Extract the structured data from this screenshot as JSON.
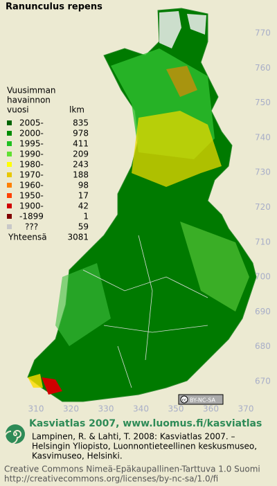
{
  "header": {
    "title": "Ranunculus repens"
  },
  "legend": {
    "heading": [
      "Vuusimman",
      "havainnon",
      "vuosi"
    ],
    "count_heading": "lkm",
    "items": [
      {
        "label": "2005-",
        "count": 835,
        "color": "#006400"
      },
      {
        "label": "2000-",
        "count": 978,
        "color": "#008c00"
      },
      {
        "label": "1995-",
        "count": 411,
        "color": "#20c020"
      },
      {
        "label": "1990-",
        "count": 209,
        "color": "#60e030"
      },
      {
        "label": "1980-",
        "count": 243,
        "color": "#ffff00"
      },
      {
        "label": "1970-",
        "count": 188,
        "color": "#e8c800"
      },
      {
        "label": "1960-",
        "count": 98,
        "color": "#ff8000"
      },
      {
        "label": "1950-",
        "count": 17,
        "color": "#ff4000"
      },
      {
        "label": "1900-",
        "count": 42,
        "color": "#d00000"
      },
      {
        "label": "-1899",
        "count": 1,
        "color": "#800000"
      },
      {
        "label": "???",
        "count": 59,
        "color": "#c8c8c8"
      }
    ],
    "total_label": "Yhteensä",
    "total": 3081
  },
  "axes": {
    "y_labels": [
      "770",
      "760",
      "750",
      "740",
      "730",
      "720",
      "710",
      "700",
      "690",
      "680",
      "670"
    ],
    "x_labels": [
      "310",
      "320",
      "330",
      "340",
      "350",
      "360",
      "370"
    ]
  },
  "badge": "BY-NC-SA",
  "footer": {
    "brand": "Kasviatlas 2007, www.luomus.fi/kasviatlas",
    "citation": [
      "Lampinen, R. & Lahti, T. 2008: Kasviatlas 2007. –",
      "Helsingin Yliopisto, Luonnontieteellinen keskusmuseo,",
      "Kasvimuseo, Helsinki."
    ],
    "license": [
      "Creative Commons Nimeä-Epäkaupallinen-Tarttuva 1.0 Suomi",
      "http://creativecommons.org/licenses/by-nc-sa/1.0/fi"
    ]
  }
}
